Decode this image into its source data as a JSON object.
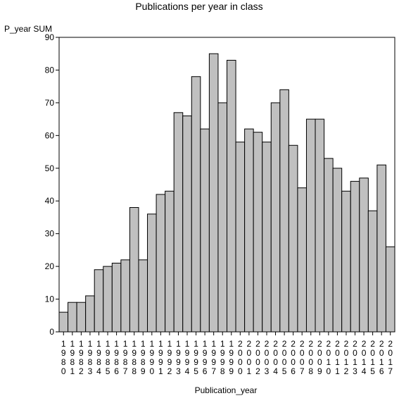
{
  "chart_data": {
    "type": "bar",
    "title": "Publications per year in class",
    "ylabel": "P_year SUM",
    "xlabel": "Publication_year",
    "ylim": [
      0,
      90
    ],
    "yticks": [
      0,
      10,
      20,
      30,
      40,
      50,
      60,
      70,
      80,
      90
    ],
    "grid": false,
    "categories": [
      "1980",
      "1981",
      "1982",
      "1983",
      "1984",
      "1985",
      "1986",
      "1987",
      "1988",
      "1989",
      "1990",
      "1991",
      "1992",
      "1993",
      "1994",
      "1995",
      "1996",
      "1997",
      "1998",
      "1999",
      "2000",
      "2001",
      "2002",
      "2003",
      "2004",
      "2005",
      "2006",
      "2007",
      "2008",
      "2009",
      "2010",
      "2011",
      "2012",
      "2013",
      "2014",
      "2015",
      "2016",
      "2017"
    ],
    "values": [
      6,
      9,
      9,
      11,
      19,
      20,
      21,
      22,
      38,
      22,
      36,
      42,
      43,
      67,
      66,
      78,
      62,
      85,
      70,
      83,
      58,
      62,
      61,
      58,
      70,
      74,
      57,
      44,
      65,
      65,
      53,
      50,
      43,
      46,
      47,
      37,
      51,
      26
    ],
    "bar_fill": "#c0c0c0",
    "bar_stroke": "#000000"
  }
}
